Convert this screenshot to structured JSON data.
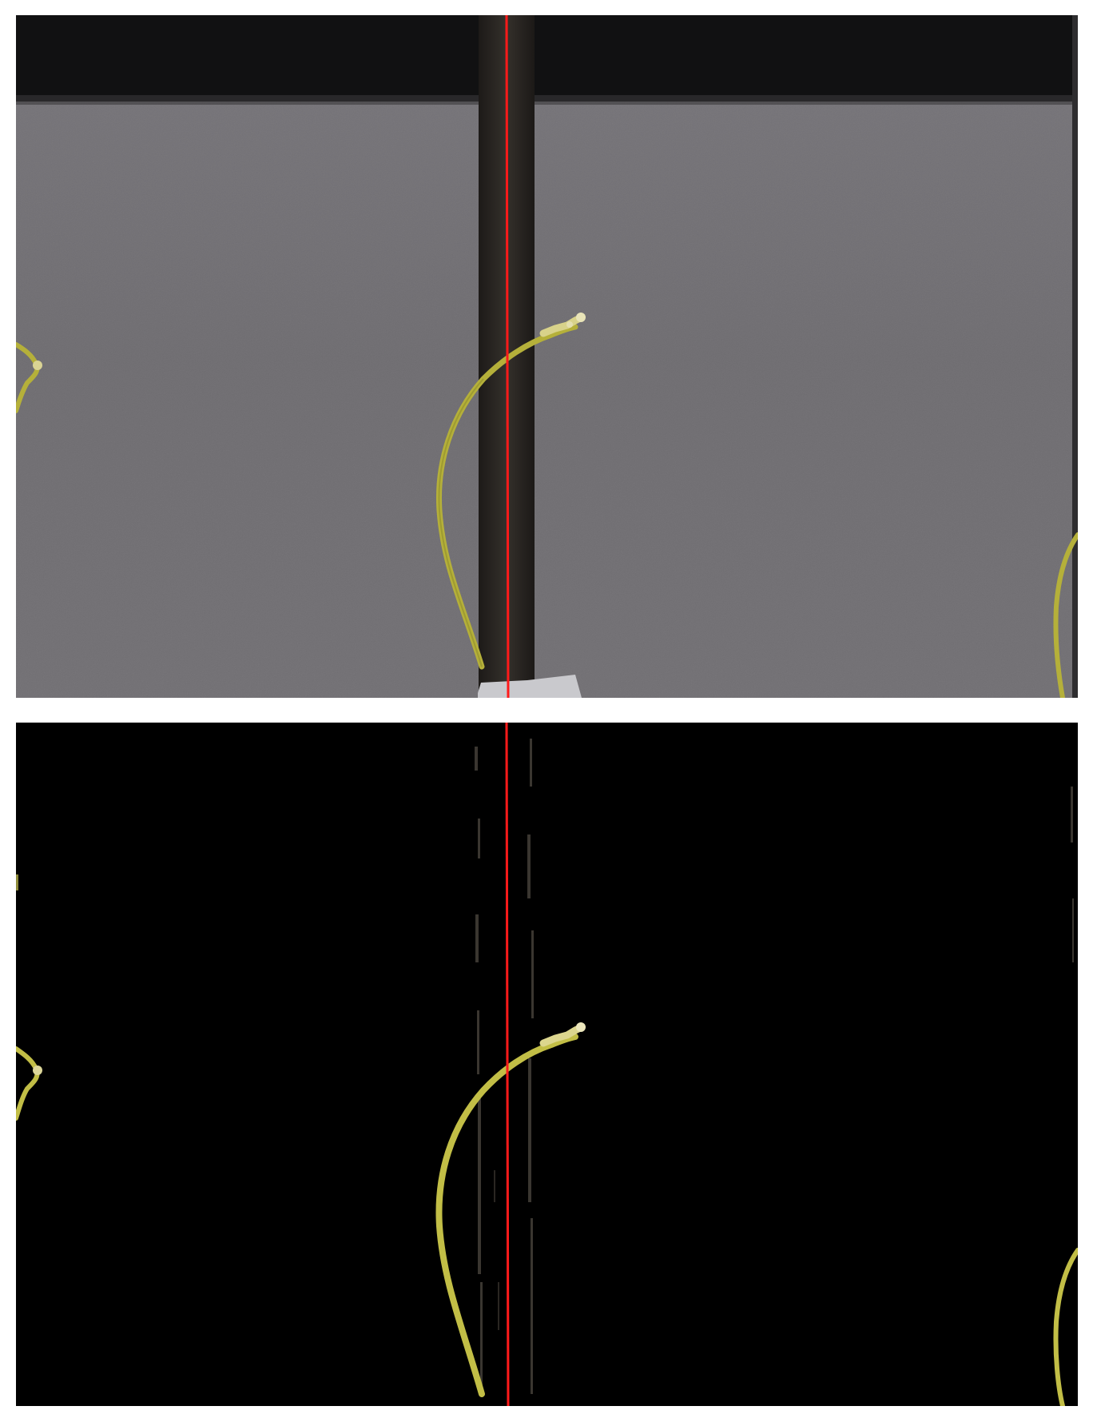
{
  "figure": {
    "panels": [
      {
        "id": "original",
        "description_name": "original-photo",
        "colors": {
          "background_top": "#0f0f10",
          "background_panel": "#6e6c70",
          "rod": "#2a2522",
          "plant": "#b8b43c",
          "reference_line": "#ff1a1a",
          "clip": "#c8c8cc"
        }
      },
      {
        "id": "segmented",
        "description_name": "segmented-mask",
        "colors": {
          "background": "#000000",
          "rod_residue": "#3a3630",
          "plant": "#c6c24a",
          "reference_line": "#ff1a1a"
        }
      }
    ]
  }
}
